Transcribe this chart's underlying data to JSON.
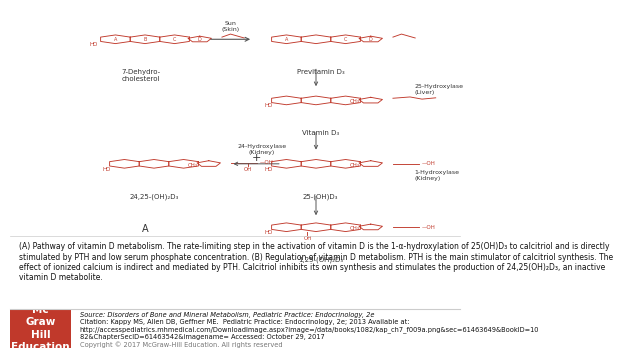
{
  "caption": "(A) Pathway of vitamin D metabolism. The rate-limiting step in the activation of vitamin D is the 1-α-hydroxylation of 25(OH)D₃ to calcitriol and is directly\nstimulated by PTH and low serum phosphate concentration. (B) Regulation of vitamin D metabolism. PTH is the main stimulator of calcitriol synthesis. The\neffect of ionized calcium is indirect and mediated by PTH. Calcitriol inhibits its own synthesis and stimulates the production of 24,25(OH)₂D₃, an inactive\nvitamin D metabolite.",
  "source_line1": "Source: Disorders of Bone and Mineral Metabolism, Pediatric Practice: Endocrinology, 2e",
  "source_line2": "Citation: Kappy MS, Allen DB, Geffner ME.  Pediatric Practice: Endocrinology, 2e; 2013 Available at:",
  "source_line3": "http://accesspediatrics.mhmedical.com/Downloadimage.aspx?image=/data/books/1082/kap_ch7_f009a.png&sec=61463649&BookID=10",
  "source_line4": "82&ChapterSecID=61463542&imagename= Accessed: October 29, 2017",
  "source_line5": "Copyright © 2017 McGraw-Hill Education. All rights reserved",
  "mcgraw_text": "Mc\nGraw\nHill\nEducation",
  "bg_color": "#ffffff",
  "caption_fontsize": 5.5,
  "source_fontsize": 4.8,
  "mcgraw_box_color": "#c0392b",
  "ring_color": "#c0392b",
  "text_color": "#333333",
  "arrow_color": "#555555"
}
